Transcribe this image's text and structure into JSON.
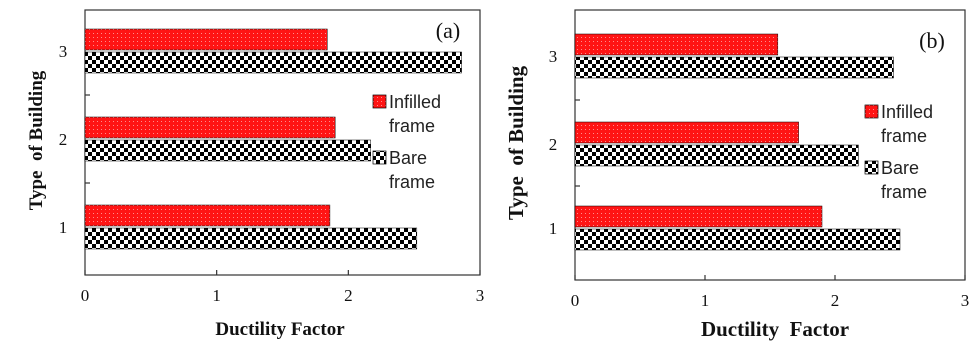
{
  "chart_data": [
    {
      "type": "bar",
      "orientation": "horizontal",
      "panel_label": "(a)",
      "categories": [
        "1",
        "2",
        "3"
      ],
      "xlabel": "Ductility Factor",
      "ylabel": "Type  of Building",
      "xlim": [
        0,
        3
      ],
      "xticks": [
        "0",
        "1",
        "2",
        "3"
      ],
      "grid": false,
      "legend_position": "right",
      "series": [
        {
          "name": "Infilled frame",
          "legend_lines": [
            "Infilled",
            "frame"
          ],
          "values": [
            1.86,
            1.9,
            1.84
          ],
          "color": "#ff0000",
          "pattern": "dotted-red"
        },
        {
          "name": "Bare frame",
          "legend_lines": [
            "Bare",
            "frame"
          ],
          "values": [
            2.52,
            2.17,
            2.86
          ],
          "color": "#000000",
          "pattern": "checkerboard"
        }
      ]
    },
    {
      "type": "bar",
      "orientation": "horizontal",
      "panel_label": "(b)",
      "categories": [
        "1",
        "2",
        "3"
      ],
      "xlabel": "Ductility  Factor",
      "ylabel": "Type  of Building",
      "xlim": [
        0,
        3
      ],
      "xticks": [
        "0",
        "1",
        "2",
        "3"
      ],
      "grid": false,
      "legend_position": "right",
      "series": [
        {
          "name": "Infilled frame",
          "legend_lines": [
            "Infilled",
            "frame"
          ],
          "values": [
            1.9,
            1.72,
            1.56
          ],
          "color": "#ff0000",
          "pattern": "dotted-red"
        },
        {
          "name": "Bare frame",
          "legend_lines": [
            "Bare",
            "frame"
          ],
          "values": [
            2.5,
            2.18,
            2.45
          ],
          "color": "#000000",
          "pattern": "checkerboard"
        }
      ]
    }
  ]
}
